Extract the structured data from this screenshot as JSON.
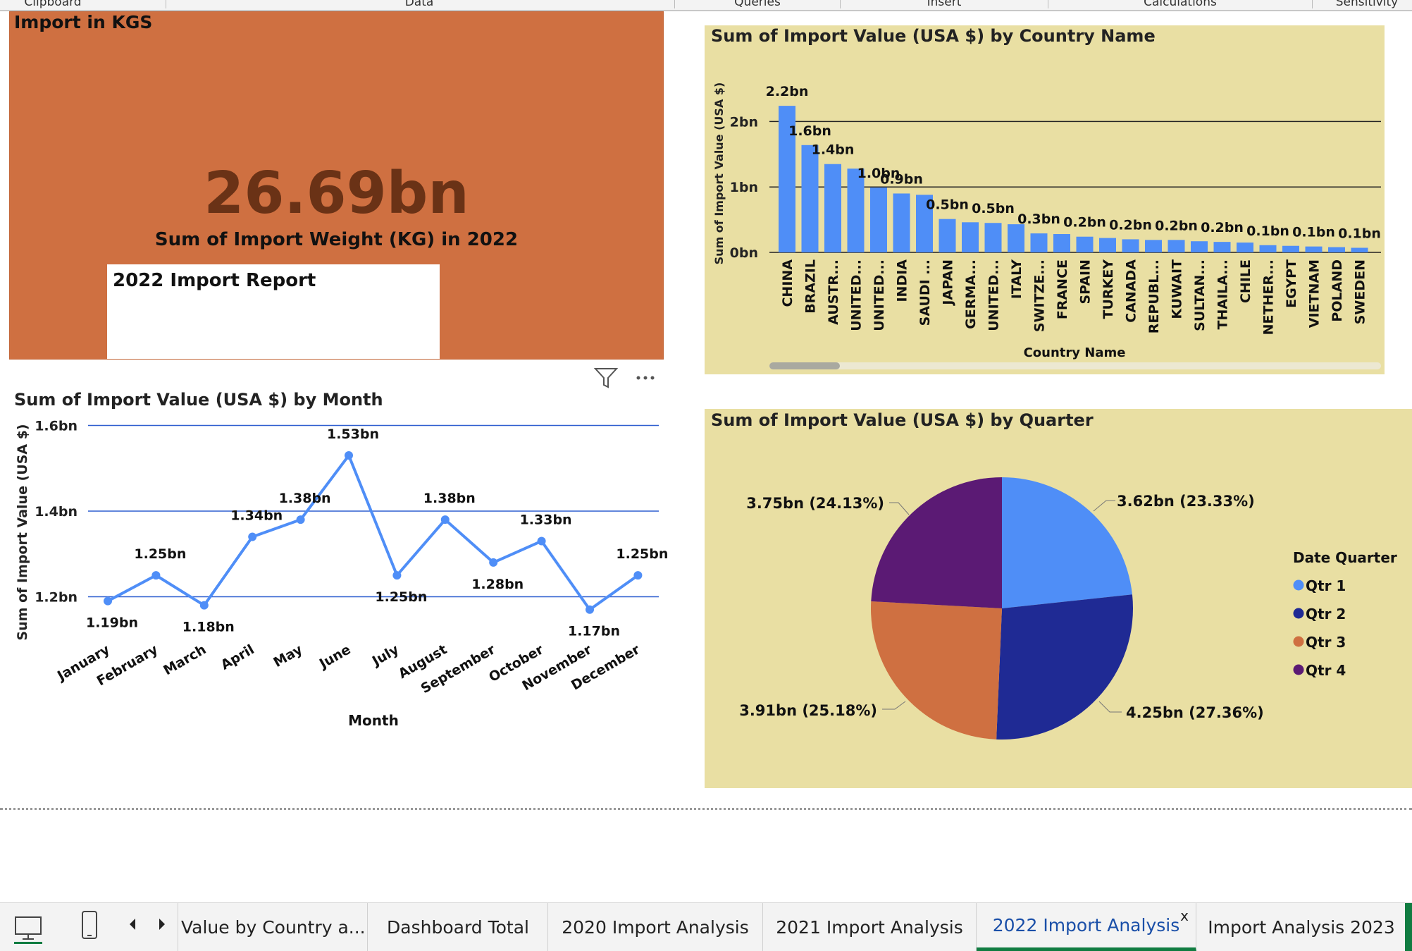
{
  "ribbon": {
    "groups": [
      "Clipboard",
      "Data",
      "Queries",
      "Insert",
      "Calculations",
      "Sensitivity"
    ]
  },
  "card": {
    "title": "Import in KGS",
    "value": "26.69bn",
    "caption": "Sum of Import Weight (KG) in 2022",
    "textbox": "2022 Import Report",
    "bg_color": "#cf7041"
  },
  "bar_chart_title": "Sum of Import Value (USA $) by Country Name",
  "line_chart_title": "Sum of Import Value (USA $) by Month",
  "pie_chart_title": "Sum of Import Value (USA $) by Quarter",
  "icons": [
    "filter-icon",
    "more-options-icon",
    "desktop-view-icon",
    "phone-view-icon",
    "chevron-left-icon",
    "chevron-right-icon"
  ],
  "chart_data": [
    {
      "type": "bar",
      "title": "Sum of Import Value (USA $) by Country Name",
      "xlabel": "Country Name",
      "ylabel": "Sum of Import Value (USA $)",
      "yticks": [
        "0bn",
        "1bn",
        "2bn"
      ],
      "ylim": [
        0,
        2.5
      ],
      "categories": [
        "CHINA",
        "BRAZIL",
        "AUSTR...",
        "UNITED...",
        "UNITED...",
        "INDIA",
        "SAUDI ...",
        "JAPAN",
        "GERMA...",
        "UNITED...",
        "ITALY",
        "SWITZE...",
        "FRANCE",
        "SPAIN",
        "TURKEY",
        "CANADA",
        "REPUBL...",
        "KUWAIT",
        "SULTAN...",
        "THAILA...",
        "CHILE",
        "NETHER...",
        "EGYPT",
        "VIETNAM",
        "POLAND",
        "SWEDEN"
      ],
      "values": [
        2.24,
        1.64,
        1.35,
        1.28,
        0.99,
        0.9,
        0.88,
        0.51,
        0.46,
        0.45,
        0.43,
        0.29,
        0.28,
        0.24,
        0.22,
        0.2,
        0.19,
        0.19,
        0.17,
        0.16,
        0.15,
        0.11,
        0.1,
        0.09,
        0.08,
        0.07
      ],
      "data_labels": [
        "2.2bn",
        "1.6bn",
        "1.4bn",
        "",
        "1.0bn",
        "0.9bn",
        "",
        "0.5bn",
        "",
        "0.5bn",
        "",
        "0.3bn",
        "",
        "0.2bn",
        "",
        "0.2bn",
        "",
        "0.2bn",
        "",
        "0.2bn",
        "",
        "0.1bn",
        "",
        "0.1bn",
        "",
        "0.1bn"
      ],
      "bar_color": "#4f8ef7",
      "bg_color": "#e9dfa3",
      "grid": true
    },
    {
      "type": "line",
      "title": "Sum of Import Value (USA $) by Month",
      "xlabel": "Month",
      "ylabel": "Sum of Import Value (USA $)",
      "yticks": [
        "1.2bn",
        "1.4bn",
        "1.6bn"
      ],
      "ylim": [
        1.2,
        1.6
      ],
      "categories": [
        "January",
        "February",
        "March",
        "April",
        "May",
        "June",
        "July",
        "August",
        "September",
        "October",
        "November",
        "December"
      ],
      "values": [
        1.19,
        1.25,
        1.18,
        1.34,
        1.38,
        1.53,
        1.25,
        1.38,
        1.28,
        1.33,
        1.17,
        1.25
      ],
      "data_labels": [
        "1.19bn",
        "1.25bn",
        "1.18bn",
        "1.34bn",
        "1.38bn",
        "1.53bn",
        "1.25bn",
        "1.38bn",
        "1.28bn",
        "1.33bn",
        "1.17bn",
        "1.25bn"
      ],
      "label_side": [
        "below",
        "above",
        "below",
        "above",
        "above",
        "above",
        "below",
        "above",
        "below",
        "above",
        "below",
        "above"
      ],
      "line_color": "#4f8ef7",
      "grid": true
    },
    {
      "type": "pie",
      "title": "Sum of Import Value (USA $) by Quarter",
      "legend_title": "Date Quarter",
      "legend_position": "right",
      "categories": [
        "Qtr 1",
        "Qtr 2",
        "Qtr 3",
        "Qtr 4"
      ],
      "values": [
        3.62,
        4.25,
        3.91,
        3.75
      ],
      "data_labels": [
        "3.62bn (23.33%)",
        "4.25bn (27.36%)",
        "3.91bn (25.18%)",
        "3.75bn (24.13%)"
      ],
      "colors": [
        "#4f8ef7",
        "#1f2a94",
        "#cf7041",
        "#5b1a74"
      ],
      "bg_color": "#e9dfa3"
    }
  ],
  "tabs": {
    "items": [
      {
        "label": "Value by Country a...",
        "active": false
      },
      {
        "label": "Dashboard Total",
        "active": false
      },
      {
        "label": "2020 Import Analysis",
        "active": false
      },
      {
        "label": "2021 Import Analysis",
        "active": false
      },
      {
        "label": "2022 Import Analysis",
        "active": true
      },
      {
        "label": "Import Analysis 2023",
        "active": false
      }
    ],
    "close_label": "x"
  }
}
